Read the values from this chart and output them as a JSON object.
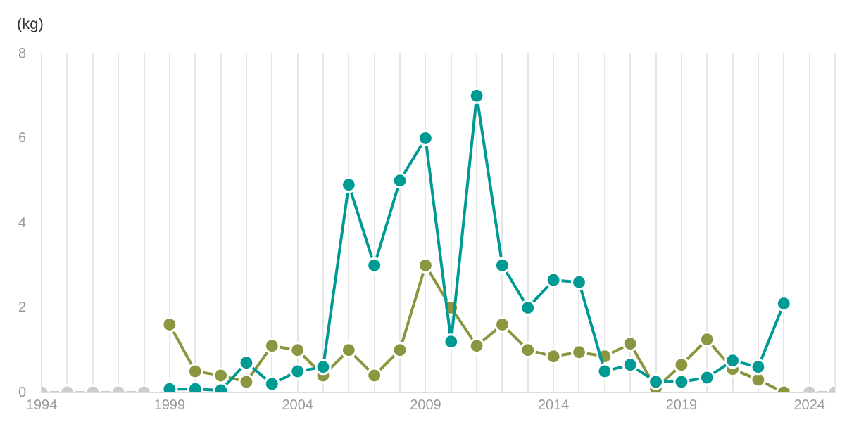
{
  "chart_data": {
    "type": "line",
    "ylabel": "(kg)",
    "x": [
      1994,
      1995,
      1996,
      1997,
      1998,
      1999,
      2000,
      2001,
      2002,
      2003,
      2004,
      2005,
      2006,
      2007,
      2008,
      2009,
      2010,
      2011,
      2012,
      2013,
      2014,
      2015,
      2016,
      2017,
      2018,
      2019,
      2020,
      2021,
      2022,
      2023,
      2024,
      2025
    ],
    "series": [
      {
        "color": "#cccccc",
        "values": [
          0,
          0,
          0,
          0,
          0,
          null,
          null,
          null,
          null,
          null,
          null,
          null,
          null,
          null,
          null,
          null,
          null,
          null,
          null,
          null,
          null,
          null,
          null,
          null,
          null,
          null,
          null,
          null,
          null,
          null,
          0,
          0
        ]
      },
      {
        "color": "#009a94",
        "values": [
          null,
          null,
          null,
          null,
          null,
          0.08,
          0.08,
          0.05,
          0.7,
          0.2,
          0.5,
          0.6,
          4.9,
          3.0,
          5.0,
          6.0,
          1.2,
          7.0,
          3.0,
          2.0,
          2.65,
          2.6,
          0.5,
          0.65,
          0.25,
          0.25,
          0.35,
          0.75,
          0.6,
          2.1,
          null,
          null
        ]
      },
      {
        "color": "#8c9640",
        "values": [
          null,
          null,
          null,
          null,
          null,
          1.6,
          0.5,
          0.4,
          0.25,
          1.1,
          1.0,
          0.4,
          1.0,
          0.4,
          1.0,
          3.0,
          2.0,
          1.1,
          1.6,
          1.0,
          0.85,
          0.95,
          0.85,
          1.15,
          0.1,
          0.65,
          1.25,
          0.55,
          0.3,
          0.0,
          null,
          null
        ]
      }
    ],
    "xlim": [
      1994,
      2025
    ],
    "xticks": [
      1994,
      1999,
      2004,
      2009,
      2014,
      2019,
      2024
    ],
    "ylim": [
      0,
      8
    ],
    "yticks": [
      0,
      2,
      4,
      6,
      8
    ],
    "grid": "x",
    "legend": false,
    "marker": "circle",
    "line_style": "solid"
  }
}
